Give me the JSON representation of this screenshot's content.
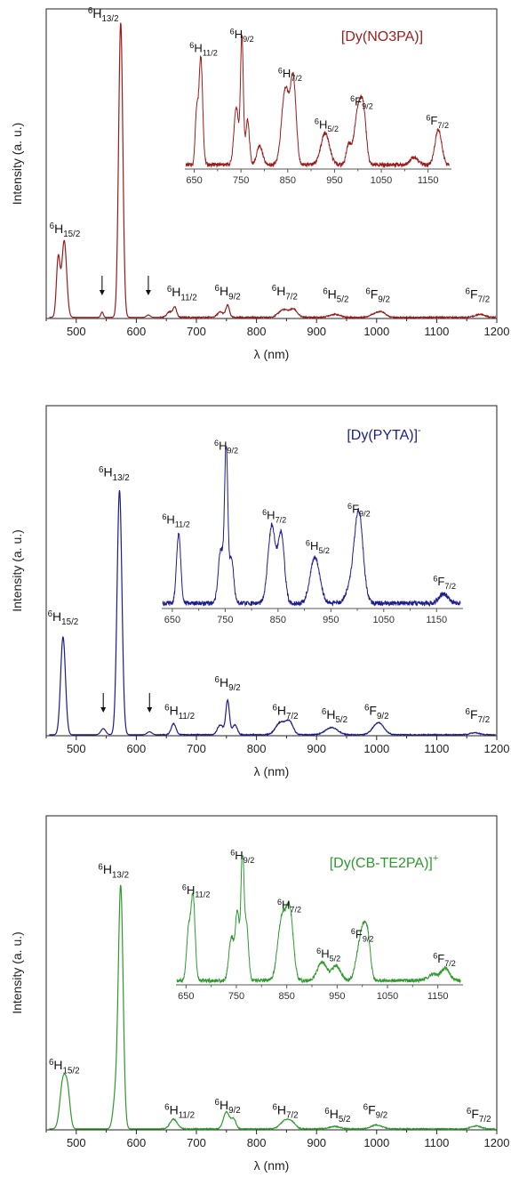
{
  "chart_data": [
    {
      "type": "line",
      "title": "",
      "label": "[Dy(NO3PA)]",
      "color": "#9b1b1b",
      "xlabel": "λ (nm)",
      "ylabel": "Intensity (a. u.)",
      "xlim": [
        450,
        1200
      ],
      "ylim": [
        0,
        1.05
      ],
      "xticks": [
        500,
        600,
        700,
        800,
        900,
        1000,
        1100,
        1200
      ],
      "arrows": [
        543,
        620
      ],
      "peaks": [
        [
          470,
          0.2,
          3
        ],
        [
          480,
          0.26,
          4
        ],
        [
          543,
          0.018,
          2
        ],
        [
          574,
          1.0,
          3.5
        ],
        [
          620,
          0.008,
          3
        ],
        [
          655,
          0.018,
          4
        ],
        [
          664,
          0.035,
          3
        ],
        [
          740,
          0.018,
          5
        ],
        [
          752,
          0.04,
          3
        ],
        [
          845,
          0.026,
          8
        ],
        [
          862,
          0.026,
          6
        ],
        [
          930,
          0.01,
          9
        ],
        [
          1000,
          0.014,
          9
        ],
        [
          1010,
          0.01,
          6
        ],
        [
          1172,
          0.01,
          8
        ]
      ],
      "transition_labels": [
        {
          "base": "6",
          "main": "H",
          "sub": "15/2",
          "x": 481,
          "y": 0.29
        },
        {
          "base": "6",
          "main": "H",
          "sub": "13/2",
          "x": 545,
          "y": 1.02
        },
        {
          "base": "6",
          "main": "H",
          "sub": "11/2",
          "x": 676,
          "y": 0.075
        },
        {
          "base": "6",
          "main": "H",
          "sub": "9/2",
          "x": 752,
          "y": 0.078
        },
        {
          "base": "6",
          "main": "H",
          "sub": "7/2",
          "x": 847,
          "y": 0.078
        },
        {
          "base": "6",
          "main": "H",
          "sub": "5/2",
          "x": 932,
          "y": 0.068
        },
        {
          "base": "6",
          "main": "F",
          "sub": "9/2",
          "x": 1002,
          "y": 0.068
        },
        {
          "base": "6",
          "main": "F",
          "sub": "7/2",
          "x": 1168,
          "y": 0.068
        }
      ],
      "inset": {
        "xlim": [
          630,
          1200
        ],
        "ylim": [
          0,
          1.05
        ],
        "xticks": [
          650,
          750,
          850,
          950,
          1050,
          1150
        ],
        "peaks": [
          [
            655,
            0.4,
            3
          ],
          [
            664,
            0.85,
            4
          ],
          [
            740,
            0.45,
            5
          ],
          [
            752,
            1.0,
            3
          ],
          [
            764,
            0.35,
            4
          ],
          [
            790,
            0.15,
            6
          ],
          [
            845,
            0.6,
            8
          ],
          [
            862,
            0.65,
            6
          ],
          [
            930,
            0.25,
            9
          ],
          [
            980,
            0.15,
            5
          ],
          [
            1000,
            0.42,
            8
          ],
          [
            1012,
            0.35,
            6
          ],
          [
            1120,
            0.06,
            8
          ],
          [
            1172,
            0.28,
            7
          ]
        ],
        "labels": [
          {
            "base": "6",
            "main": "H",
            "sub": "11/2",
            "x": 670,
            "y": 0.92
          },
          {
            "base": "6",
            "main": "H",
            "sub": "9/2",
            "x": 752,
            "y": 1.03
          },
          {
            "base": "6",
            "main": "H",
            "sub": "7/2",
            "x": 855,
            "y": 0.72
          },
          {
            "base": "6",
            "main": "H",
            "sub": "5/2",
            "x": 933,
            "y": 0.32
          },
          {
            "base": "6",
            "main": "F",
            "sub": "9/2",
            "x": 1008,
            "y": 0.5
          },
          {
            "base": "6",
            "main": "F",
            "sub": "7/2",
            "x": 1170,
            "y": 0.35
          }
        ]
      }
    },
    {
      "type": "line",
      "title": "",
      "label": "[Dy(PYTA)]",
      "label_sup": "-",
      "color": "#1c1c8f",
      "xlabel": "λ (nm)",
      "ylabel": "Intensity (a. u.)",
      "xlim": [
        450,
        1200
      ],
      "ylim": [
        0,
        1.35
      ],
      "xticks": [
        500,
        600,
        700,
        800,
        900,
        1000,
        1100,
        1200
      ],
      "arrows": [
        545,
        622
      ],
      "peaks": [
        [
          478,
          0.4,
          4
        ],
        [
          545,
          0.025,
          4
        ],
        [
          572,
          1.0,
          4
        ],
        [
          622,
          0.012,
          4
        ],
        [
          662,
          0.045,
          4
        ],
        [
          740,
          0.04,
          5
        ],
        [
          752,
          0.14,
          3
        ],
        [
          764,
          0.04,
          4
        ],
        [
          840,
          0.05,
          8
        ],
        [
          855,
          0.05,
          6
        ],
        [
          925,
          0.03,
          10
        ],
        [
          1003,
          0.05,
          9
        ],
        [
          1163,
          0.008,
          8
        ]
      ],
      "transition_labels": [
        {
          "base": "6",
          "main": "H",
          "sub": "15/2",
          "x": 478,
          "y": 0.47
        },
        {
          "base": "6",
          "main": "H",
          "sub": "13/2",
          "x": 563,
          "y": 1.06
        },
        {
          "base": "6",
          "main": "H",
          "sub": "11/2",
          "x": 672,
          "y": 0.085
        },
        {
          "base": "6",
          "main": "H",
          "sub": "9/2",
          "x": 752,
          "y": 0.2
        },
        {
          "base": "6",
          "main": "H",
          "sub": "7/2",
          "x": 848,
          "y": 0.085
        },
        {
          "base": "6",
          "main": "H",
          "sub": "5/2",
          "x": 930,
          "y": 0.07
        },
        {
          "base": "6",
          "main": "F",
          "sub": "9/2",
          "x": 1000,
          "y": 0.085
        },
        {
          "base": "6",
          "main": "F",
          "sub": "7/2",
          "x": 1168,
          "y": 0.07
        }
      ],
      "inset": {
        "xlim": [
          630,
          1200
        ],
        "ylim": [
          0,
          1.05
        ],
        "xticks": [
          650,
          750,
          850,
          950,
          1050,
          1150
        ],
        "peaks": [
          [
            662,
            0.45,
            4
          ],
          [
            742,
            0.35,
            5
          ],
          [
            752,
            1.0,
            3
          ],
          [
            762,
            0.3,
            4
          ],
          [
            838,
            0.5,
            7
          ],
          [
            856,
            0.45,
            6
          ],
          [
            920,
            0.3,
            9
          ],
          [
            990,
            0.12,
            10
          ],
          [
            1003,
            0.55,
            8
          ],
          [
            1163,
            0.06,
            8
          ]
        ],
        "labels": [
          {
            "base": "6",
            "main": "H",
            "sub": "11/2",
            "x": 657,
            "y": 0.55
          },
          {
            "base": "6",
            "main": "H",
            "sub": "9/2",
            "x": 752,
            "y": 1.03
          },
          {
            "base": "6",
            "main": "H",
            "sub": "7/2",
            "x": 843,
            "y": 0.58
          },
          {
            "base": "6",
            "main": "H",
            "sub": "5/2",
            "x": 925,
            "y": 0.38
          },
          {
            "base": "6",
            "main": "F",
            "sub": "9/2",
            "x": 1003,
            "y": 0.62
          },
          {
            "base": "6",
            "main": "F",
            "sub": "7/2",
            "x": 1165,
            "y": 0.15
          }
        ]
      }
    },
    {
      "type": "line",
      "title": "",
      "label": "[Dy(CB-TE2PA)]",
      "label_sup": "+",
      "color": "#2e9a2e",
      "xlabel": "λ (nm)",
      "ylabel": "Intensity (a. u.)",
      "xlim": [
        450,
        1200
      ],
      "ylim": [
        0,
        1.3
      ],
      "xticks": [
        500,
        600,
        700,
        800,
        900,
        1000,
        1100,
        1200
      ],
      "arrows": [],
      "peaks": [
        [
          478,
          0.2,
          5
        ],
        [
          486,
          0.13,
          4
        ],
        [
          565,
          0.12,
          4
        ],
        [
          574,
          1.0,
          4
        ],
        [
          662,
          0.04,
          6
        ],
        [
          750,
          0.07,
          5
        ],
        [
          762,
          0.04,
          4
        ],
        [
          848,
          0.035,
          8
        ],
        [
          860,
          0.02,
          6
        ],
        [
          930,
          0.01,
          9
        ],
        [
          1000,
          0.016,
          9
        ],
        [
          1165,
          0.012,
          8
        ]
      ],
      "transition_labels": [
        {
          "base": "6",
          "main": "H",
          "sub": "15/2",
          "x": 480,
          "y": 0.25
        },
        {
          "base": "6",
          "main": "H",
          "sub": "13/2",
          "x": 562,
          "y": 1.06
        },
        {
          "base": "6",
          "main": "H",
          "sub": "11/2",
          "x": 672,
          "y": 0.065
        },
        {
          "base": "6",
          "main": "H",
          "sub": "9/2",
          "x": 752,
          "y": 0.085
        },
        {
          "base": "6",
          "main": "H",
          "sub": "7/2",
          "x": 848,
          "y": 0.065
        },
        {
          "base": "6",
          "main": "H",
          "sub": "5/2",
          "x": 935,
          "y": 0.048
        },
        {
          "base": "6",
          "main": "F",
          "sub": "9/2",
          "x": 998,
          "y": 0.065
        },
        {
          "base": "6",
          "main": "F",
          "sub": "7/2",
          "x": 1170,
          "y": 0.048
        }
      ],
      "inset": {
        "xlim": [
          630,
          1200
        ],
        "ylim": [
          0,
          1.05
        ],
        "xticks": [
          650,
          750,
          850,
          950,
          1050,
          1150
        ],
        "peaks": [
          [
            655,
            0.4,
            4
          ],
          [
            664,
            0.68,
            4
          ],
          [
            740,
            0.35,
            5
          ],
          [
            752,
            0.55,
            4
          ],
          [
            762,
            1.0,
            3
          ],
          [
            770,
            0.45,
            4
          ],
          [
            840,
            0.5,
            8
          ],
          [
            856,
            0.55,
            7
          ],
          [
            920,
            0.15,
            9
          ],
          [
            948,
            0.12,
            9
          ],
          [
            995,
            0.25,
            8
          ],
          [
            1005,
            0.3,
            7
          ],
          [
            1012,
            0.18,
            5
          ],
          [
            1140,
            0.05,
            10
          ],
          [
            1165,
            0.1,
            8
          ]
        ],
        "labels": [
          {
            "base": "6",
            "main": "H",
            "sub": "11/2",
            "x": 670,
            "y": 0.74
          },
          {
            "base": "6",
            "main": "H",
            "sub": "9/2",
            "x": 762,
            "y": 1.02
          },
          {
            "base": "6",
            "main": "H",
            "sub": "7/2",
            "x": 855,
            "y": 0.62
          },
          {
            "base": "6",
            "main": "H",
            "sub": "5/2",
            "x": 933,
            "y": 0.22
          },
          {
            "base": "6",
            "main": "F",
            "sub": "9/2",
            "x": 1000,
            "y": 0.38
          },
          {
            "base": "6",
            "main": "F",
            "sub": "7/2",
            "x": 1163,
            "y": 0.18
          }
        ]
      }
    }
  ]
}
